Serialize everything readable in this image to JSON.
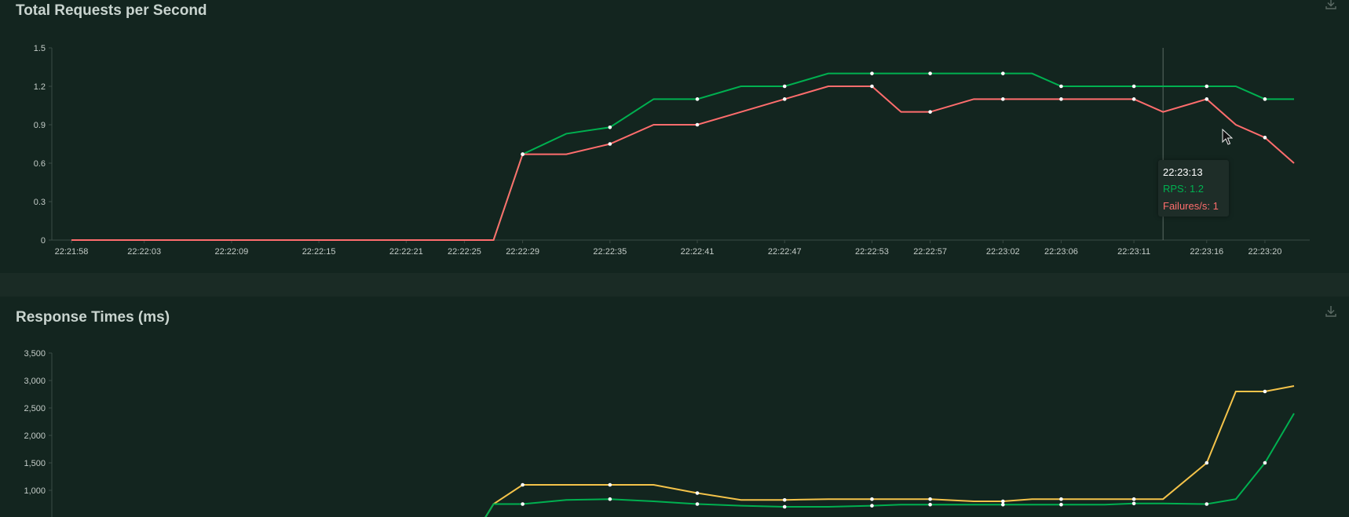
{
  "panels": {
    "rps": {
      "title": "Total Requests per Second"
    },
    "rt": {
      "title": "Response Times (ms)"
    }
  },
  "tooltip": {
    "time": "22:23:13",
    "rps_text": "RPS: 1.2",
    "failures_text": "Failures/s: 1"
  },
  "colors": {
    "rps": "#00b050",
    "failures": "#ff6d6d",
    "rt_p95": "#f4c34a",
    "rt_median": "#00b050"
  },
  "icons": {
    "download": "download-icon",
    "cursor": "mouse-pointer-icon"
  },
  "chart_data": [
    {
      "type": "line",
      "title": "Total Requests per Second",
      "x": [
        "22:21:58",
        "22:22:01",
        "22:22:03",
        "22:22:06",
        "22:22:09",
        "22:22:12",
        "22:22:15",
        "22:22:18",
        "22:22:21",
        "22:22:23",
        "22:22:25",
        "22:22:27",
        "22:22:29",
        "22:22:32",
        "22:22:35",
        "22:22:38",
        "22:22:41",
        "22:22:44",
        "22:22:47",
        "22:22:50",
        "22:22:53",
        "22:22:55",
        "22:22:57",
        "22:23:00",
        "22:23:02",
        "22:23:04",
        "22:23:06",
        "22:23:09",
        "22:23:11",
        "22:23:13",
        "22:23:16",
        "22:23:18",
        "22:23:20",
        "22:23:22"
      ],
      "x_tick_labels": [
        "22:21:58",
        "22:22:03",
        "22:22:09",
        "22:22:15",
        "22:22:21",
        "22:22:25",
        "22:22:29",
        "22:22:35",
        "22:22:41",
        "22:22:47",
        "22:22:53",
        "22:22:57",
        "22:23:02",
        "22:23:06",
        "22:23:11",
        "22:23:16",
        "22:23:20"
      ],
      "series": [
        {
          "name": "RPS",
          "color": "#00b050",
          "values": [
            0,
            0,
            0,
            0,
            0,
            0,
            0,
            0,
            0,
            0,
            0,
            0,
            0.67,
            0.83,
            0.88,
            1.1,
            1.1,
            1.2,
            1.2,
            1.3,
            1.3,
            1.3,
            1.3,
            1.3,
            1.3,
            1.3,
            1.2,
            1.2,
            1.2,
            1.2,
            1.2,
            1.2,
            1.1,
            1.1
          ]
        },
        {
          "name": "Failures/s",
          "color": "#ff6d6d",
          "values": [
            0,
            0,
            0,
            0,
            0,
            0,
            0,
            0,
            0,
            0,
            0,
            0,
            0.67,
            0.67,
            0.75,
            0.9,
            0.9,
            1.0,
            1.1,
            1.2,
            1.2,
            1.0,
            1.0,
            1.1,
            1.1,
            1.1,
            1.1,
            1.1,
            1.1,
            1.0,
            1.1,
            0.9,
            0.8,
            0.6
          ]
        }
      ],
      "y_ticks": [
        "0",
        "0.3",
        "0.6",
        "0.9",
        "1.2",
        "1.5"
      ],
      "ylim": [
        0,
        1.5
      ],
      "grid": false,
      "hover_index": 29
    },
    {
      "type": "line",
      "title": "Response Times (ms)",
      "x": [
        "22:22:27",
        "22:22:29",
        "22:22:32",
        "22:22:35",
        "22:22:38",
        "22:22:41",
        "22:22:44",
        "22:22:47",
        "22:22:50",
        "22:22:53",
        "22:22:55",
        "22:22:57",
        "22:23:00",
        "22:23:02",
        "22:23:04",
        "22:23:06",
        "22:23:09",
        "22:23:11",
        "22:23:13",
        "22:23:16",
        "22:23:18",
        "22:23:20",
        "22:23:22"
      ],
      "series": [
        {
          "color": "#f4c34a",
          "values": [
            750,
            1100,
            1100,
            1100,
            1100,
            950,
            825,
            825,
            840,
            840,
            840,
            840,
            800,
            800,
            840,
            840,
            840,
            840,
            840,
            1500,
            2800,
            2800,
            2900
          ]
        },
        {
          "color": "#00b050",
          "values": [
            750,
            750,
            825,
            840,
            800,
            750,
            720,
            700,
            700,
            720,
            740,
            740,
            740,
            740,
            740,
            740,
            740,
            760,
            760,
            750,
            840,
            1500,
            2400
          ]
        }
      ],
      "y_ticks": [
        "1,000",
        "1,500",
        "2,000",
        "2,500",
        "3,000",
        "3,500"
      ],
      "ylim": [
        0,
        3500
      ],
      "grid": false
    }
  ]
}
